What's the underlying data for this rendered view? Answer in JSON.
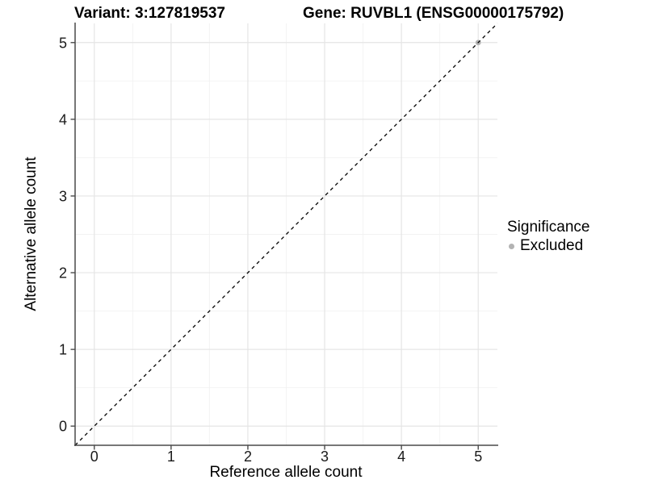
{
  "figure": {
    "variant_title": "Variant: 3:127819537",
    "gene_title": "Gene: RUVBL1 (ENSG00000175792)"
  },
  "axes": {
    "x_label": "Reference allele count",
    "y_label": "Alternative allele count"
  },
  "legend": {
    "title": "Significance",
    "items": [
      {
        "label": "Excluded",
        "color": "#b3b3b3"
      }
    ]
  },
  "colors": {
    "background": "#ffffff",
    "axis_line": "#4a4a4a",
    "tick_mark": "#4a4a4a",
    "tick_label": "#1a1a1a",
    "grid_major": "#e5e5e5",
    "grid_minor": "#f2f2f2",
    "reference_line": "#000000",
    "excluded_point": "#b3b3b3"
  },
  "chart_data": {
    "type": "scatter",
    "titles": [
      "Variant: 3:127819537",
      "Gene: RUVBL1 (ENSG00000175792)"
    ],
    "xlabel": "Reference allele count",
    "ylabel": "Alternative allele count",
    "xlim": [
      -0.25,
      5.25
    ],
    "ylim": [
      -0.25,
      5.25
    ],
    "x_ticks": [
      0,
      1,
      2,
      3,
      4,
      5
    ],
    "y_ticks": [
      0,
      1,
      2,
      3,
      4,
      5
    ],
    "x_minor_ticks": [
      0.5,
      1.5,
      2.5,
      3.5,
      4.5
    ],
    "y_minor_ticks": [
      0.5,
      1.5,
      2.5,
      3.5,
      4.5
    ],
    "grid": true,
    "legend_position": "right",
    "series": [
      {
        "name": "Excluded",
        "color": "#b3b3b3",
        "points": [
          {
            "x": 5,
            "y": 5
          }
        ]
      }
    ],
    "reference_line": {
      "slope": 1,
      "intercept": 0,
      "style": "dashed",
      "color": "#000000"
    }
  }
}
